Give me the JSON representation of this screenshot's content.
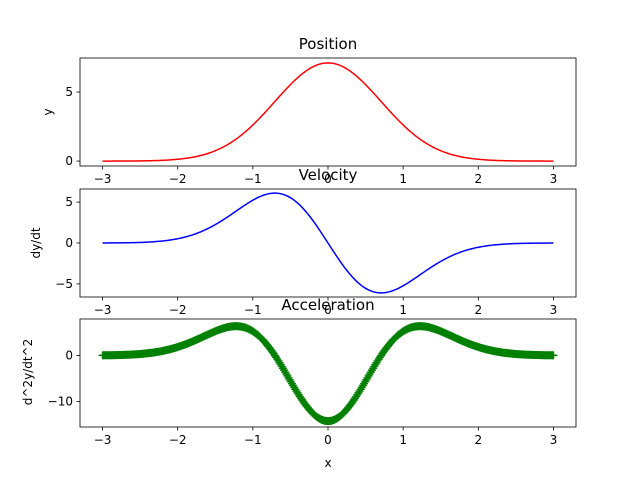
{
  "chart_data": [
    {
      "type": "line",
      "title": "Position",
      "xlabel": "",
      "ylabel": "y",
      "xlim": [
        -3.3,
        3.3
      ],
      "ylim": [
        -0.3555,
        7.4655
      ],
      "xticks": [
        -3,
        -2,
        -1,
        0,
        1,
        2,
        3
      ],
      "xtick_labels": [
        "−3",
        "−2",
        "−1",
        "0",
        "1",
        "2",
        "3"
      ],
      "yticks": [
        0,
        5
      ],
      "ytick_labels": [
        "0",
        "5"
      ],
      "color": "#ff0000",
      "marker": "none",
      "function": "7.11*exp(-x^2)",
      "x": [
        -3,
        -2.5,
        -2,
        -1.75,
        -1.5,
        -1.25,
        -1,
        -0.75,
        -0.5,
        -0.25,
        0,
        0.25,
        0.5,
        0.75,
        1,
        1.25,
        1.5,
        1.75,
        2,
        2.5,
        3
      ],
      "y": [
        0.0009,
        0.0136,
        0.1302,
        0.3316,
        0.7494,
        1.4849,
        2.6157,
        4.0633,
        5.5374,
        6.679,
        7.11,
        6.679,
        5.5374,
        4.0633,
        2.6157,
        1.4849,
        0.7494,
        0.3316,
        0.1302,
        0.0136,
        0.0009
      ]
    },
    {
      "type": "line",
      "title": "Velocity",
      "xlabel": "",
      "ylabel": "dy/dt",
      "xlim": [
        -3.3,
        3.3
      ],
      "ylim": [
        -6.6,
        6.6
      ],
      "xticks": [
        -3,
        -2,
        -1,
        0,
        1,
        2,
        3
      ],
      "xtick_labels": [
        "−3",
        "−2",
        "−1",
        "0",
        "1",
        "2",
        "3"
      ],
      "yticks": [
        -5,
        0,
        5
      ],
      "ytick_labels": [
        "−5",
        "0",
        "5"
      ],
      "color": "#0000ff",
      "marker": "none",
      "function": "-2*7.11*x*exp(-x^2)",
      "x": [
        -3,
        -2.5,
        -2,
        -1.5,
        -1.25,
        -1,
        -0.707,
        -0.5,
        -0.25,
        0,
        0.25,
        0.5,
        0.707,
        1,
        1.25,
        1.5,
        2,
        2.5,
        3
      ],
      "y": [
        0.0054,
        0.068,
        0.521,
        2.248,
        3.712,
        5.231,
        6.098,
        5.537,
        3.34,
        0,
        -3.34,
        -5.537,
        -6.098,
        -5.231,
        -3.712,
        -2.248,
        -0.521,
        -0.068,
        -0.0054
      ]
    },
    {
      "type": "scatter",
      "title": "Acceleration",
      "xlabel": "x",
      "ylabel": "d^2y/dt^2",
      "xlim": [
        -3.3,
        3.3
      ],
      "ylim": [
        -15.5,
        7.9
      ],
      "xticks": [
        -3,
        -2,
        -1,
        0,
        1,
        2,
        3
      ],
      "xtick_labels": [
        "−3",
        "−2",
        "−1",
        "0",
        "1",
        "2",
        "3"
      ],
      "yticks": [
        -10,
        0
      ],
      "ytick_labels": [
        "−10",
        "0"
      ],
      "color": "#008000",
      "marker": "+",
      "function": "7.11*(4x^2-2)*exp(-x^2)",
      "x": [
        -3,
        -2.5,
        -2,
        -1.5,
        -1.25,
        -1,
        -0.75,
        -0.5,
        -0.25,
        0,
        0.25,
        0.5,
        0.75,
        1,
        1.25,
        1.5,
        2,
        2.5,
        3
      ],
      "y": [
        0.03,
        0.31,
        1.82,
        5.25,
        6.24,
        5.23,
        1.02,
        -5.54,
        -11.69,
        -14.22,
        -11.69,
        -5.54,
        1.02,
        5.23,
        6.24,
        5.25,
        1.82,
        0.31,
        0.03
      ]
    }
  ]
}
